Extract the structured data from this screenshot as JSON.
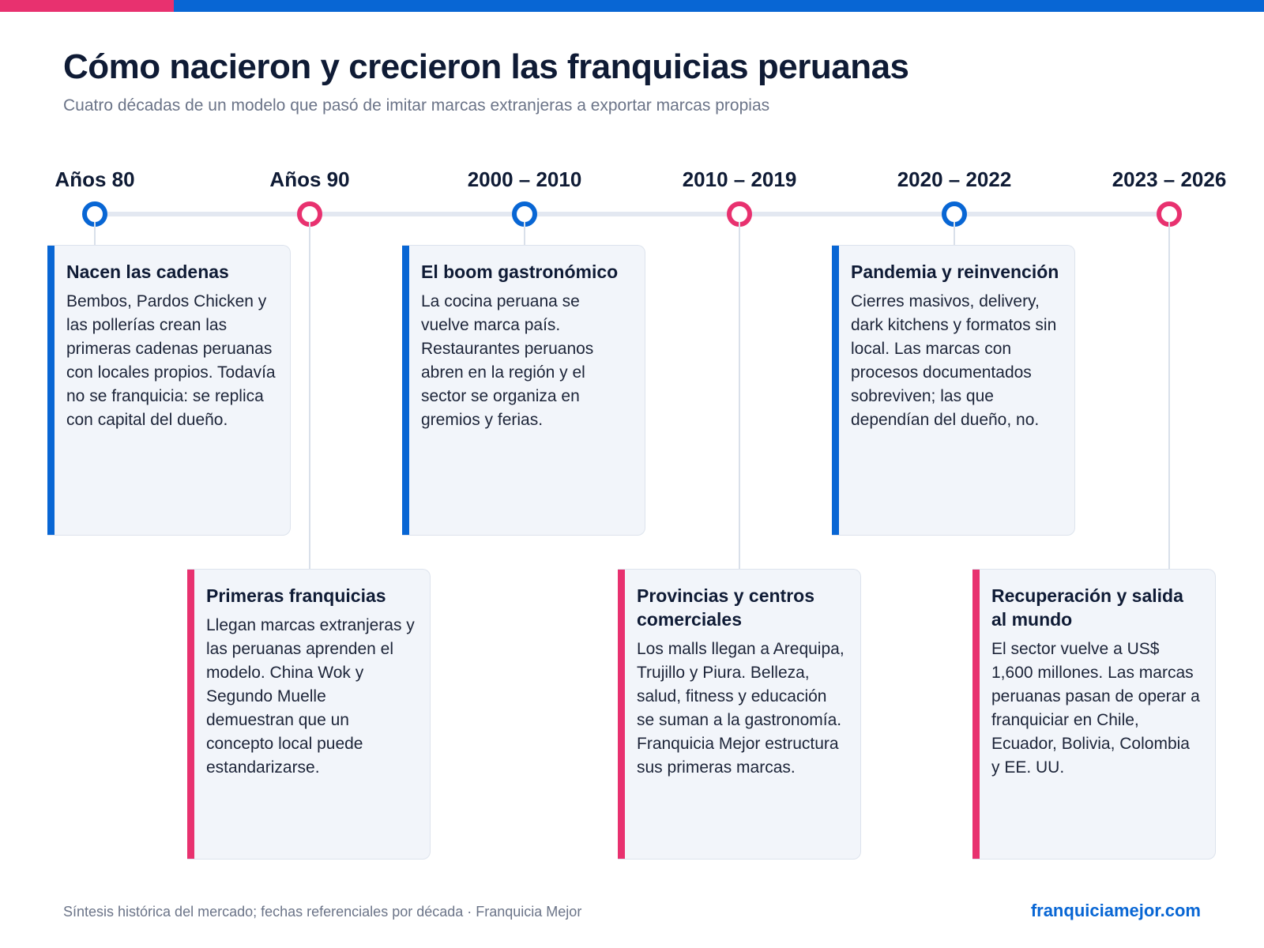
{
  "brand": {
    "accent_blue": "#0866d4",
    "accent_pink": "#e8316f",
    "text_dark": "#0f1b35",
    "card_bg": "#f2f5fa"
  },
  "header": {
    "title": "Cómo nacieron y crecieron las franquicias peruanas",
    "subtitle": "Cuatro décadas de un modelo que pasó de imitar marcas extranjeras a exportar marcas propias"
  },
  "timeline": {
    "eras": [
      {
        "label": "Años 80",
        "color": "blue",
        "card_title": "Nacen las cadenas",
        "card_text": "Bembos, Pardos Chicken y las pollerías crean las primeras cadenas peruanas con locales propios. Todavía no se franquicia: se replica con capital del dueño."
      },
      {
        "label": "Años 90",
        "color": "pink",
        "card_title": "Primeras franquicias",
        "card_text": "Llegan marcas extranjeras y las peruanas aprenden el modelo. China Wok y Segundo Muelle demuestran que un concepto local puede estandarizarse."
      },
      {
        "label": "2000 – 2010",
        "color": "blue",
        "card_title": "El boom gastronómico",
        "card_text": "La cocina peruana se vuelve marca país. Restaurantes peruanos abren en la región y el sector se organiza en gremios y ferias."
      },
      {
        "label": "2010 – 2019",
        "color": "pink",
        "card_title": "Provincias y centros comerciales",
        "card_text": "Los malls llegan a Arequipa, Trujillo y Piura. Belleza, salud, fitness y educación se suman a la gastronomía. Franquicia Mejor estructura sus primeras marcas."
      },
      {
        "label": "2020 – 2022",
        "color": "blue",
        "card_title": "Pandemia y reinvención",
        "card_text": "Cierres masivos, delivery, dark kitchens y formatos sin local. Las marcas con procesos documentados sobreviven; las que dependían del dueño, no."
      },
      {
        "label": "2023 – 2026",
        "color": "pink",
        "card_title": "Recuperación y salida al mundo",
        "card_text": "El sector vuelve a US$ 1,600 millones. Las marcas peruanas pasan de operar a franquiciar en Chile, Ecuador, Bolivia, Colombia y EE. UU."
      }
    ]
  },
  "footer": {
    "note": "Síntesis histórica del mercado; fechas referenciales por década · Franquicia Mejor",
    "link": "franquiciamejor.com"
  }
}
